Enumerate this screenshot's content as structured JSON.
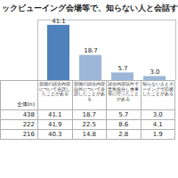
{
  "chart_data": {
    "type": "bar",
    "title": "ックビューイング会場等で、知らない人と会話す",
    "categories": [
      "自国の試合内容について会話したことがある",
      "自国の試合内容以外について会話したことがある",
      "試合内容以外で意気投合し食事等に行ったことがある",
      "知らない人とボーイングで応援したことがある"
    ],
    "values": [
      41.1,
      18.7,
      5.7,
      3.0
    ],
    "value_labels": [
      "41.1",
      "18.7",
      "5.7",
      "3.0"
    ],
    "colors": [
      "#4f81bd",
      "#9db7d8",
      "#9db7d8",
      "#9db7d8"
    ],
    "ylim": [
      0,
      45
    ],
    "data_labels": true,
    "tick_labels": false
  },
  "table": {
    "header": "全体(n)",
    "rows": [
      [
        "438",
        "41.1",
        "18.7",
        "5.7",
        "3.0"
      ],
      [
        "222",
        "41.9",
        "22.5",
        "8.6",
        "4.1"
      ],
      [
        "216",
        "40.3",
        "14.8",
        "2.8",
        "1.9"
      ]
    ]
  }
}
